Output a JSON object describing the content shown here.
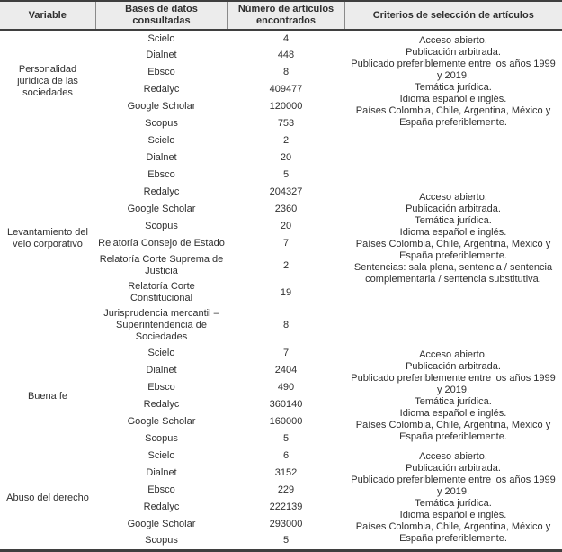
{
  "colors": {
    "header_background": "#ececec",
    "rule_dark": "#3f3f3f",
    "header_separator": "#8a8a8a",
    "text": "#2f2f2f"
  },
  "table": {
    "headers": [
      "Variable",
      "Bases de datos consultadas",
      "Número de artículos encontrados",
      "Criterios de selección de artículos"
    ],
    "groups": [
      {
        "variable": "Personalidad jurídica de las sociedades",
        "rows": [
          {
            "database": "Scielo",
            "count": "4"
          },
          {
            "database": "Dialnet",
            "count": "448"
          },
          {
            "database": "Ebsco",
            "count": "8"
          },
          {
            "database": "Redalyc",
            "count": "409477"
          },
          {
            "database": "Google Scholar",
            "count": "120000"
          },
          {
            "database": "Scopus",
            "count": "753"
          }
        ],
        "criteria": [
          "Acceso abierto.",
          "Publicación arbitrada.",
          "Publicado preferiblemente entre los años 1999 y 2019.",
          "Temática jurídica.",
          "Idioma español e inglés.",
          "Países Colombia, Chile, Argentina, México y España preferiblemente."
        ]
      },
      {
        "variable": "Levantamiento del velo corporativo",
        "rows": [
          {
            "database": "Scielo",
            "count": "2"
          },
          {
            "database": "Dialnet",
            "count": "20"
          },
          {
            "database": "Ebsco",
            "count": "5"
          },
          {
            "database": "Redalyc",
            "count": "204327"
          },
          {
            "database": "Google Scholar",
            "count": "2360"
          },
          {
            "database": "Scopus",
            "count": "20"
          },
          {
            "database": "Relatoría Consejo de Estado",
            "count": "7"
          },
          {
            "database": "Relatoría Corte Suprema de Justicia",
            "count": "2"
          },
          {
            "database": "Relatoría Corte Constitucional",
            "count": "19"
          },
          {
            "database": "Jurisprudencia mercantil – Superintendencia de Sociedades",
            "count": "8"
          }
        ],
        "criteria": [
          "Acceso abierto.",
          "Publicación arbitrada.",
          "Temática jurídica.",
          "Idioma español e inglés.",
          "Países Colombia, Chile, Argentina, México y España preferiblemente.",
          "Sentencias: sala plena, sentencia / sentencia complementaria / sentencia substitutiva."
        ]
      },
      {
        "variable": "Buena fe",
        "rows": [
          {
            "database": "Scielo",
            "count": "7"
          },
          {
            "database": "Dialnet",
            "count": "2404"
          },
          {
            "database": "Ebsco",
            "count": "490"
          },
          {
            "database": "Redalyc",
            "count": "360140"
          },
          {
            "database": "Google Scholar",
            "count": "160000"
          },
          {
            "database": "Scopus",
            "count": "5"
          }
        ],
        "criteria": [
          "Acceso abierto.",
          "Publicación arbitrada.",
          "Publicado preferiblemente entre los años 1999 y 2019.",
          "Temática jurídica.",
          "Idioma español e inglés.",
          "Países Colombia, Chile, Argentina, México y España preferiblemente."
        ]
      },
      {
        "variable": "Abuso del derecho",
        "rows": [
          {
            "database": "Scielo",
            "count": "6"
          },
          {
            "database": "Dialnet",
            "count": "3152"
          },
          {
            "database": "Ebsco",
            "count": "229"
          },
          {
            "database": "Redalyc",
            "count": "222139"
          },
          {
            "database": "Google Scholar",
            "count": "293000"
          },
          {
            "database": "Scopus",
            "count": "5"
          }
        ],
        "criteria": [
          "Acceso abierto.",
          "Publicación arbitrada.",
          "Publicado preferiblemente entre los años 1999 y 2019.",
          "Temática jurídica.",
          "Idioma español e inglés.",
          "Países Colombia, Chile, Argentina, México y España preferiblemente."
        ]
      }
    ]
  }
}
